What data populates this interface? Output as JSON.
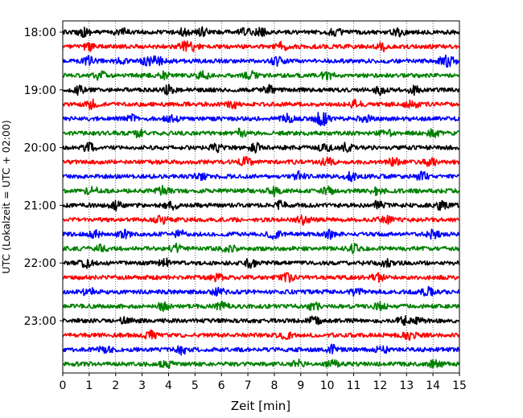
{
  "chart_data": {
    "type": "line",
    "subtype": "helicorder",
    "xlabel": "Zeit  [min]",
    "ylabel": "UTC (Lokalzeit = UTC + 02:00)",
    "xlim": [
      0,
      15
    ],
    "x_ticks": [
      "0",
      "1",
      "2",
      "3",
      "4",
      "5",
      "6",
      "7",
      "8",
      "9",
      "10",
      "11",
      "12",
      "13",
      "14",
      "15"
    ],
    "y_tick_labels": [
      "18:00",
      "19:00",
      "20:00",
      "21:00",
      "22:00",
      "23:00"
    ],
    "trace_start_times": [
      "18:00",
      "18:15",
      "18:30",
      "18:45",
      "19:00",
      "19:15",
      "19:30",
      "19:45",
      "20:00",
      "20:15",
      "20:30",
      "20:45",
      "21:00",
      "21:15",
      "21:30",
      "21:45",
      "22:00",
      "22:15",
      "22:30",
      "22:45",
      "23:00",
      "23:15",
      "23:30",
      "23:45"
    ],
    "trace_colors": [
      "#000000",
      "#ff0000",
      "#0000ff",
      "#008000"
    ],
    "grid": "vertical dotted",
    "series": [
      {
        "values": [
          0.8,
          2.2,
          4.6,
          5.3,
          6.9,
          7.5,
          10.3,
          12.7
        ]
      },
      {
        "values": [
          1.0,
          4.6,
          4.9,
          8.3,
          12.1
        ]
      },
      {
        "values": [
          1.0,
          2.2,
          3.2,
          3.6,
          8.1,
          14.4,
          14.7
        ]
      },
      {
        "values": [
          1.4,
          3.8,
          5.3,
          7.1,
          10.0
        ]
      },
      {
        "values": [
          0.6,
          4.0,
          7.8,
          12.0,
          13.3
        ]
      },
      {
        "values": [
          1.1,
          6.5,
          11.1,
          13.2
        ]
      },
      {
        "values": [
          2.6,
          4.1,
          8.5,
          9.7,
          9.9,
          11.4
        ]
      },
      {
        "values": [
          2.9,
          6.7,
          12.2,
          14.0
        ]
      },
      {
        "values": [
          1.0,
          5.8,
          7.3,
          9.9,
          10.7
        ]
      },
      {
        "values": [
          6.9,
          10.0,
          12.5,
          13.9
        ]
      },
      {
        "values": [
          5.2,
          8.9,
          10.9,
          13.6
        ]
      },
      {
        "values": [
          1.1,
          3.8,
          8.0,
          10.0,
          11.9
        ]
      },
      {
        "values": [
          2.0,
          4.1,
          8.2,
          11.9,
          14.3
        ]
      },
      {
        "values": [
          3.7,
          9.1,
          12.2
        ]
      },
      {
        "values": [
          1.2,
          2.3,
          4.4,
          8.0,
          10.1,
          14.0
        ]
      },
      {
        "values": [
          1.5,
          4.3,
          6.3,
          11.0
        ]
      },
      {
        "values": [
          0.9,
          3.9,
          7.1,
          12.2
        ]
      },
      {
        "values": [
          5.8,
          8.5,
          11.9
        ]
      },
      {
        "values": [
          1.0,
          5.9,
          11.1,
          13.8
        ]
      },
      {
        "values": [
          3.8,
          6.0,
          9.5,
          12.0
        ]
      },
      {
        "values": [
          2.4,
          9.5,
          12.9,
          13.5
        ]
      },
      {
        "values": [
          3.3,
          8.4,
          13.1
        ]
      },
      {
        "values": [
          1.6,
          4.5,
          10.2,
          12.1
        ]
      },
      {
        "values": [
          3.9,
          8.9,
          10.2,
          14.1
        ]
      }
    ]
  }
}
